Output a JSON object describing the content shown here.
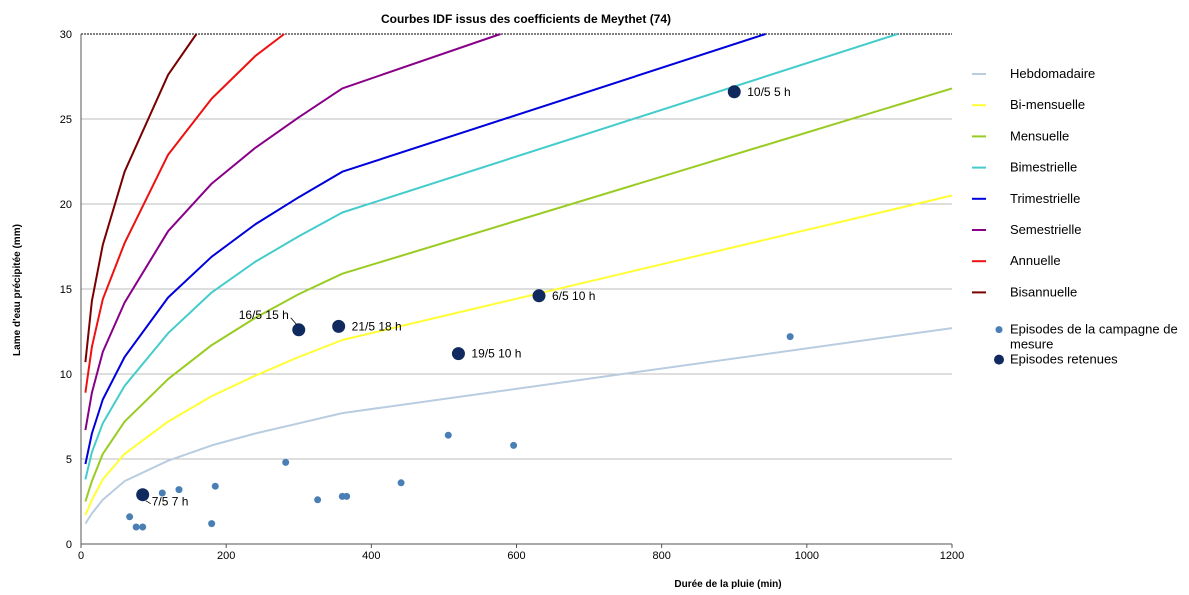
{
  "chart_data": {
    "type": "line",
    "title": "Courbes IDF issus des coefficients de Meythet (74)",
    "xlabel": "Durée de la pluie (min)",
    "ylabel": "Lame d'eau précipitée (mm)",
    "xlim": [
      0,
      1200
    ],
    "ylim": [
      0,
      30
    ],
    "x_ticks": [
      "0",
      "200",
      "400",
      "600",
      "800",
      "1000",
      "1200"
    ],
    "y_ticks": [
      "0",
      "5",
      "10",
      "15",
      "20",
      "25",
      "30"
    ],
    "grid": "horizontal",
    "legend_position": "right",
    "series": [
      {
        "name": "Hebdomadaire",
        "color": "#b9cde0",
        "points": [
          [
            6,
            1.2
          ],
          [
            15,
            1.8
          ],
          [
            30,
            2.6
          ],
          [
            60,
            3.7
          ],
          [
            120,
            4.9
          ],
          [
            180,
            5.8
          ],
          [
            240,
            6.5
          ],
          [
            300,
            7.1
          ],
          [
            360,
            7.7
          ],
          [
            1200,
            12.7
          ]
        ]
      },
      {
        "name": "Bi-mensuelle",
        "color": "#ffff33",
        "points": [
          [
            6,
            1.7
          ],
          [
            15,
            2.6
          ],
          [
            30,
            3.8
          ],
          [
            60,
            5.3
          ],
          [
            120,
            7.2
          ],
          [
            180,
            8.7
          ],
          [
            240,
            9.9
          ],
          [
            300,
            11.0
          ],
          [
            360,
            12.0
          ],
          [
            1200,
            20.5
          ]
        ]
      },
      {
        "name": "Mensuelle",
        "color": "#99cc22",
        "points": [
          [
            6,
            2.5
          ],
          [
            15,
            3.7
          ],
          [
            30,
            5.3
          ],
          [
            60,
            7.2
          ],
          [
            120,
            9.7
          ],
          [
            180,
            11.7
          ],
          [
            240,
            13.3
          ],
          [
            300,
            14.7
          ],
          [
            360,
            15.9
          ],
          [
            1200,
            26.8
          ]
        ]
      },
      {
        "name": "Bimestrielle",
        "color": "#44cccc",
        "points": [
          [
            6,
            3.8
          ],
          [
            15,
            5.4
          ],
          [
            30,
            7.1
          ],
          [
            60,
            9.3
          ],
          [
            120,
            12.4
          ],
          [
            180,
            14.8
          ],
          [
            240,
            16.6
          ],
          [
            300,
            18.1
          ],
          [
            360,
            19.5
          ],
          [
            1125,
            30.0
          ]
        ]
      },
      {
        "name": "Trimestrielle",
        "color": "#0000dd",
        "points": [
          [
            6,
            4.7
          ],
          [
            15,
            6.5
          ],
          [
            30,
            8.5
          ],
          [
            60,
            11.0
          ],
          [
            120,
            14.5
          ],
          [
            180,
            16.9
          ],
          [
            240,
            18.8
          ],
          [
            300,
            20.4
          ],
          [
            360,
            21.9
          ],
          [
            943,
            30.0
          ]
        ]
      },
      {
        "name": "Semestrielle",
        "color": "#880088",
        "points": [
          [
            6,
            6.7
          ],
          [
            15,
            8.9
          ],
          [
            30,
            11.3
          ],
          [
            60,
            14.2
          ],
          [
            120,
            18.4
          ],
          [
            180,
            21.2
          ],
          [
            240,
            23.3
          ],
          [
            300,
            25.1
          ],
          [
            360,
            26.8
          ],
          [
            578,
            30.0
          ]
        ]
      },
      {
        "name": "Annuelle",
        "color": "#ee1111",
        "points": [
          [
            6,
            8.9
          ],
          [
            15,
            11.6
          ],
          [
            30,
            14.4
          ],
          [
            60,
            17.7
          ],
          [
            120,
            22.9
          ],
          [
            180,
            26.2
          ],
          [
            240,
            28.7
          ],
          [
            280,
            30.0
          ]
        ]
      },
      {
        "name": "Bisannuelle",
        "color": "#7a0000",
        "points": [
          [
            6,
            10.7
          ],
          [
            15,
            14.3
          ],
          [
            30,
            17.6
          ],
          [
            60,
            21.9
          ],
          [
            120,
            27.6
          ],
          [
            159,
            30.0
          ]
        ]
      }
    ],
    "scatter_series": [
      {
        "name": "Episodes de la campagne de mesure",
        "color": "#4a7fb5",
        "points": [
          [
            67,
            1.6
          ],
          [
            76,
            1.0
          ],
          [
            85,
            1.0
          ],
          [
            112,
            3.0
          ],
          [
            135,
            3.2
          ],
          [
            180,
            1.2
          ],
          [
            185,
            3.4
          ],
          [
            282,
            4.8
          ],
          [
            326,
            2.6
          ],
          [
            360,
            2.8
          ],
          [
            366,
            2.8
          ],
          [
            441,
            3.6
          ],
          [
            506,
            6.4
          ],
          [
            596,
            5.8
          ],
          [
            977,
            12.2
          ]
        ]
      },
      {
        "name": "Episodes retenues",
        "color": "#10295e",
        "points": [
          [
            85,
            2.9
          ],
          [
            300,
            12.6
          ],
          [
            355,
            12.8
          ],
          [
            520,
            11.2
          ],
          [
            631,
            14.6
          ],
          [
            900,
            26.6
          ]
        ],
        "labels": [
          "7/5 7 h",
          "16/5 15 h",
          "21/5 18 h",
          "19/5 10 h",
          "6/5 10 h",
          "10/5 5 h"
        ]
      }
    ]
  }
}
